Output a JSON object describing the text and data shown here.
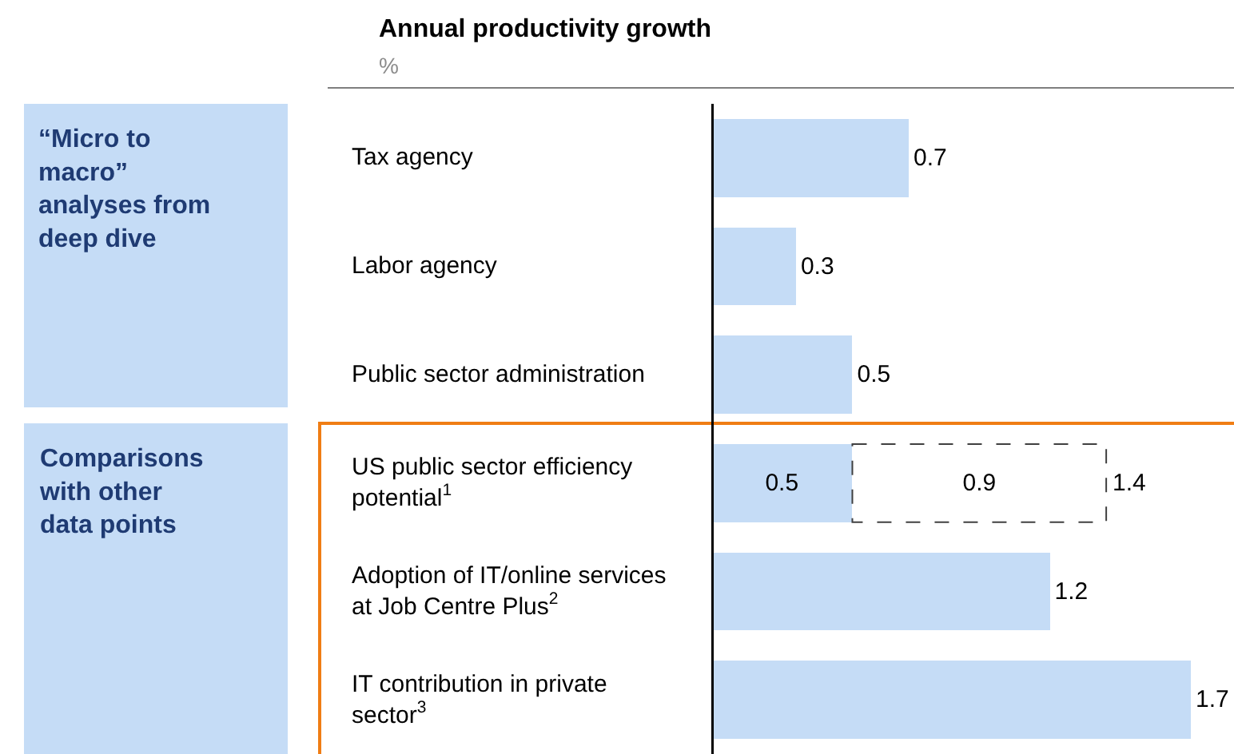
{
  "chart_data": {
    "type": "bar",
    "orientation": "horizontal",
    "stacked": true,
    "title": "Annual productivity growth",
    "subtitle": "%",
    "categories": [
      "Tax agency",
      "Labor agency",
      "Public sector administration",
      "US public sector efficiency potential$^{1}$",
      "Adoption of IT/online services at Job Centre Plus$^{2}$",
      "IT contribution in private sector$^{3}$"
    ],
    "series": [
      {
        "color": "#c5dcf6",
        "values": [
          0.7,
          0.3,
          0.5,
          0.5,
          1.2,
          1.7
        ]
      },
      {
        "color": "#ffffff",
        "line_style": "dashed",
        "values": [
          null,
          null,
          null,
          0.9,
          null,
          null
        ]
      }
    ],
    "totals": [
      null,
      null,
      null,
      "1.4",
      null,
      null
    ],
    "data_labels": true,
    "annotations": [
      "“Micro to macro” analyses from deep dive",
      "Comparisons with other data points"
    ]
  }
}
